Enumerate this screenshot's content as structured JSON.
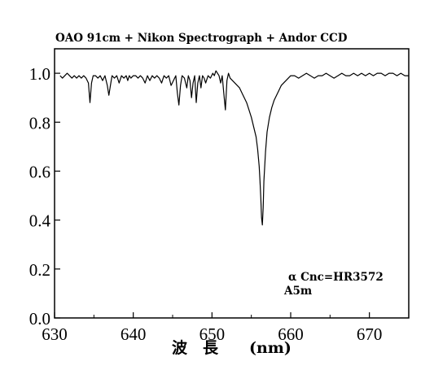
{
  "chart_data": {
    "type": "line",
    "title": "OAO 91cm + Nikon Spectrograph + Andor CCD",
    "xlabel": "波　長　　(nm)",
    "ylabel": "",
    "xlim": [
      630,
      675
    ],
    "ylim": [
      0.0,
      1.1
    ],
    "xticks": [
      630,
      640,
      650,
      660,
      670
    ],
    "xtick_labels": [
      "630",
      "640",
      "650",
      "660",
      "670"
    ],
    "yticks": [
      0.0,
      0.2,
      0.4,
      0.6,
      0.8,
      1.0
    ],
    "ytick_labels": [
      "0.0",
      "0.2",
      "0.4",
      "0.6",
      "0.8",
      "1.0"
    ],
    "grid": false,
    "annotations": [
      "α Cnc=HR3572",
      "A5m"
    ],
    "series": [
      {
        "x": [
          630.7,
          631.0,
          631.3,
          631.6,
          631.9,
          632.2,
          632.5,
          632.8,
          633.1,
          633.4,
          633.7,
          634.0,
          634.3,
          634.5,
          634.7,
          634.9,
          635.2,
          635.5,
          635.8,
          636.1,
          636.4,
          636.7,
          636.9,
          637.1,
          637.3,
          637.6,
          637.9,
          638.2,
          638.5,
          638.8,
          639.1,
          639.3,
          639.5,
          639.7,
          640.0,
          640.3,
          640.6,
          640.9,
          641.2,
          641.5,
          641.8,
          642.1,
          642.4,
          642.7,
          643.0,
          643.3,
          643.6,
          643.9,
          644.2,
          644.5,
          644.8,
          645.1,
          645.4,
          645.6,
          645.8,
          646.0,
          646.2,
          646.5,
          646.8,
          647.0,
          647.2,
          647.4,
          647.6,
          647.8,
          648.0,
          648.2,
          648.4,
          648.6,
          648.8,
          649.0,
          649.2,
          649.5,
          649.8,
          650.1,
          650.3,
          650.5,
          650.7,
          650.9,
          651.1,
          651.3,
          651.5,
          651.7,
          651.9,
          652.1,
          652.3,
          652.6,
          652.9,
          653.2,
          653.5,
          653.8,
          654.1,
          654.4,
          654.7,
          655.0,
          655.3,
          655.6,
          655.8,
          656.0,
          656.1,
          656.2,
          656.3,
          656.4,
          656.5,
          656.6,
          656.8,
          657.0,
          657.3,
          657.6,
          657.9,
          658.2,
          658.5,
          658.8,
          659.1,
          659.4,
          659.7,
          660.0,
          660.5,
          661.0,
          661.5,
          662.0,
          662.5,
          663.0,
          663.5,
          664.0,
          664.5,
          665.0,
          665.5,
          666.0,
          666.5,
          667.0,
          667.5,
          668.0,
          668.5,
          669.0,
          669.5,
          670.0,
          670.5,
          671.0,
          671.5,
          672.0,
          672.5,
          673.0,
          673.5,
          674.0,
          674.5,
          675.0
        ],
        "y": [
          0.99,
          0.98,
          0.99,
          1.0,
          0.99,
          0.98,
          0.99,
          0.98,
          0.99,
          0.98,
          0.99,
          0.98,
          0.96,
          0.88,
          0.96,
          0.99,
          0.99,
          0.98,
          0.99,
          0.97,
          0.99,
          0.95,
          0.91,
          0.95,
          0.99,
          0.98,
          0.99,
          0.96,
          0.99,
          0.98,
          0.99,
          0.97,
          0.99,
          0.98,
          0.99,
          0.99,
          0.98,
          0.99,
          0.98,
          0.96,
          0.99,
          0.97,
          0.99,
          0.98,
          0.99,
          0.98,
          0.96,
          0.99,
          0.98,
          0.99,
          0.95,
          0.97,
          0.99,
          0.92,
          0.87,
          0.95,
          0.99,
          0.98,
          0.94,
          0.99,
          0.97,
          0.9,
          0.96,
          0.99,
          0.88,
          0.96,
          0.99,
          0.94,
          0.99,
          0.98,
          0.96,
          0.99,
          0.98,
          1.0,
          0.99,
          1.01,
          1.0,
          0.99,
          0.96,
          0.99,
          0.92,
          0.85,
          0.97,
          1.0,
          0.98,
          0.97,
          0.96,
          0.95,
          0.94,
          0.92,
          0.9,
          0.88,
          0.85,
          0.82,
          0.78,
          0.74,
          0.69,
          0.62,
          0.56,
          0.49,
          0.41,
          0.38,
          0.45,
          0.56,
          0.68,
          0.76,
          0.82,
          0.86,
          0.89,
          0.91,
          0.93,
          0.95,
          0.96,
          0.97,
          0.98,
          0.99,
          0.99,
          0.98,
          0.99,
          1.0,
          0.99,
          0.98,
          0.99,
          0.99,
          1.0,
          0.99,
          0.98,
          0.99,
          1.0,
          0.99,
          0.99,
          1.0,
          0.99,
          1.0,
          0.99,
          1.0,
          0.99,
          1.0,
          1.0,
          0.99,
          1.0,
          1.0,
          0.99,
          1.0,
          0.99,
          0.99
        ]
      }
    ]
  }
}
